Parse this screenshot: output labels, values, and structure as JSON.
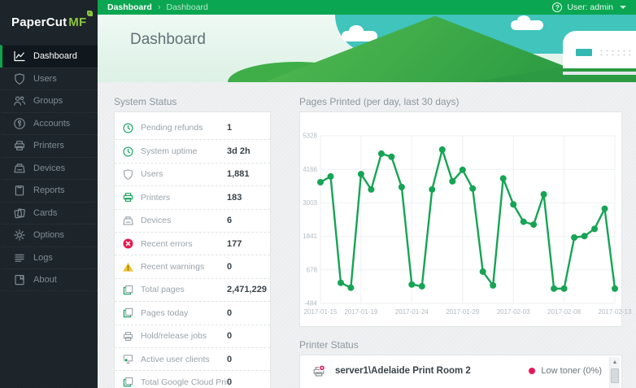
{
  "brand": {
    "name_primary": "PaperCut",
    "name_suffix": "MF"
  },
  "topbar": {
    "breadcrumb": [
      "Dashboard",
      "Dashboard"
    ],
    "breadcrumb_separator": "›",
    "help_icon": "?",
    "user_menu": "User: admin"
  },
  "page": {
    "title": "Dashboard"
  },
  "sidebar": {
    "items": [
      {
        "label": "Dashboard",
        "icon": "dashboard-chart-icon",
        "active": true
      },
      {
        "label": "Users",
        "icon": "shield-icon",
        "active": false
      },
      {
        "label": "Groups",
        "icon": "people-icon",
        "active": false
      },
      {
        "label": "Accounts",
        "icon": "key-icon",
        "active": false
      },
      {
        "label": "Printers",
        "icon": "printer-icon",
        "active": false
      },
      {
        "label": "Devices",
        "icon": "copier-icon",
        "active": false
      },
      {
        "label": "Reports",
        "icon": "clipboard-icon",
        "active": false
      },
      {
        "label": "Cards",
        "icon": "cards-icon",
        "active": false
      },
      {
        "label": "Options",
        "icon": "gear-icon",
        "active": false
      },
      {
        "label": "Logs",
        "icon": "list-icon",
        "active": false
      },
      {
        "label": "About",
        "icon": "book-icon",
        "active": false
      }
    ]
  },
  "system_status": {
    "title": "System Status",
    "rows": [
      {
        "label": "Pending refunds",
        "value": "1",
        "icon": "clock-icon",
        "tone": "green"
      },
      {
        "label": "System uptime",
        "value": "3d 2h",
        "icon": "clock-icon",
        "tone": "green"
      },
      {
        "label": "Users",
        "value": "1,881",
        "icon": "shield-icon",
        "tone": "gray"
      },
      {
        "label": "Printers",
        "value": "183",
        "icon": "printer-icon",
        "tone": "green"
      },
      {
        "label": "Devices",
        "value": "6",
        "icon": "copier-icon",
        "tone": "gray"
      },
      {
        "label": "Recent errors",
        "value": "177",
        "icon": "error-icon",
        "tone": "red"
      },
      {
        "label": "Recent warnings",
        "value": "0",
        "icon": "warning-icon",
        "tone": "yellow"
      },
      {
        "label": "Total pages",
        "value": "2,471,229",
        "icon": "pages-icon",
        "tone": "green"
      },
      {
        "label": "Pages today",
        "value": "0",
        "icon": "pages-icon",
        "tone": "green"
      },
      {
        "label": "Hold/release jobs",
        "value": "0",
        "icon": "printer-icon",
        "tone": "gray"
      },
      {
        "label": "Active user clients",
        "value": "0",
        "icon": "client-icon",
        "tone": "gray"
      },
      {
        "label": "Total Google Cloud Print jobs",
        "value": "0",
        "icon": "pages-icon",
        "tone": "green"
      }
    ]
  },
  "chart_data": {
    "type": "line",
    "title": "Pages Printed (per day, last 30 days)",
    "x": [
      "2017-01-15",
      "2017-01-16",
      "2017-01-17",
      "2017-01-18",
      "2017-01-19",
      "2017-01-20",
      "2017-01-21",
      "2017-01-22",
      "2017-01-23",
      "2017-01-24",
      "2017-01-25",
      "2017-01-26",
      "2017-01-27",
      "2017-01-28",
      "2017-01-29",
      "2017-01-30",
      "2017-01-31",
      "2017-02-01",
      "2017-02-02",
      "2017-02-03",
      "2017-02-04",
      "2017-02-05",
      "2017-02-06",
      "2017-02-07",
      "2017-02-08",
      "2017-02-09",
      "2017-02-10",
      "2017-02-11",
      "2017-02-12",
      "2017-02-13"
    ],
    "values": [
      3720,
      3920,
      230,
      60,
      4000,
      3470,
      4710,
      4600,
      3550,
      170,
      110,
      3470,
      4850,
      3750,
      4150,
      3500,
      620,
      140,
      3850,
      2950,
      2350,
      2250,
      3300,
      30,
      30,
      1800,
      1850,
      2100,
      2800,
      30
    ],
    "x_tick_indices": [
      0,
      4,
      9,
      14,
      19,
      24,
      29
    ],
    "x_tick_labels": [
      "2017-01-15",
      "2017-01-19",
      "2017-01-24",
      "2017-01-29",
      "2017-02-03",
      "2017-02-08",
      "2017-02-13"
    ],
    "y_ticks": [
      5328,
      4166,
      3003,
      1841,
      678,
      -484
    ],
    "ylim": [
      -484,
      5328
    ],
    "grid": true,
    "legend": "none",
    "line_color": "#16a455"
  },
  "printer_status": {
    "title": "Printer Status",
    "rows": [
      {
        "printer": "server1\\Adelaide Print Room 2",
        "status": "Low toner (0%)",
        "status_color": "#e8175d",
        "icon": "printer-error-icon"
      }
    ]
  },
  "colors": {
    "accent_green": "#0aa651",
    "logo_green": "#8dc63f",
    "error_red": "#e8194f",
    "warning_yellow": "#f2c12e",
    "chart_line": "#16a455",
    "sidebar_bg": "#1b2429"
  }
}
